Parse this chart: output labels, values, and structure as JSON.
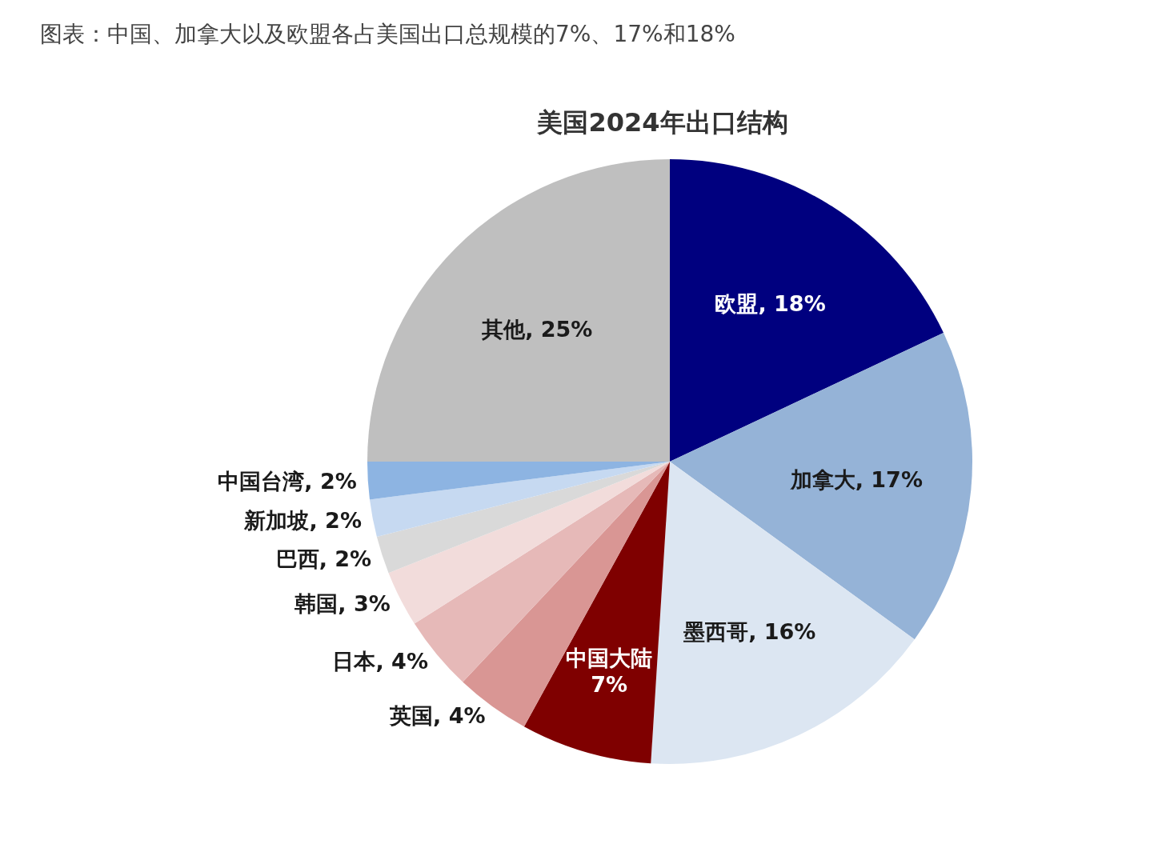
{
  "chart_data": {
    "type": "pie",
    "title": "图表：中国、加拿大以及欧盟各占美国出口总规模的7%、17%和18%",
    "subtitle": "美国2024年出口结构",
    "categories": [
      "欧盟",
      "加拿大",
      "墨西哥",
      "中国大陆",
      "英国",
      "日本",
      "韩国",
      "巴西",
      "新加坡",
      "中国台湾",
      "其他"
    ],
    "values": [
      18,
      17,
      16,
      7,
      4,
      4,
      3,
      2,
      2,
      2,
      25
    ],
    "value_labels": [
      "18%",
      "17%",
      "16%",
      "7%",
      "4%",
      "4%",
      "3%",
      "2%",
      "2%",
      "2%",
      "25%"
    ],
    "colors": [
      "#00007f",
      "#95b3d7",
      "#dce6f2",
      "#7f0000",
      "#d99694",
      "#e6b9b8",
      "#f2dcdb",
      "#d9d9d9",
      "#c6d9f1",
      "#8db4e2",
      "#bfbfbf"
    ],
    "legend": false
  }
}
